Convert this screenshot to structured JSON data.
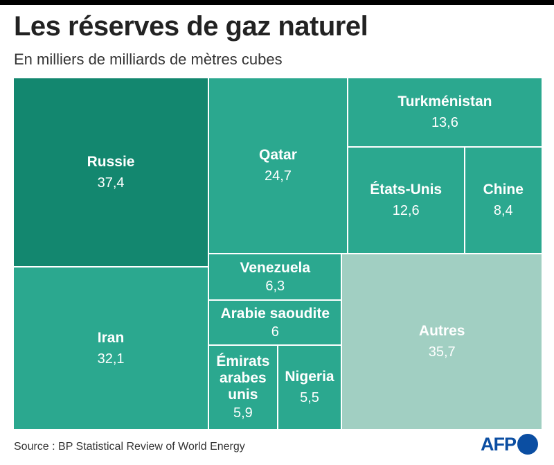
{
  "title": "Les réserves de gaz naturel",
  "subtitle": "En milliers de milliards de mètres cubes",
  "source": "Source : BP Statistical Review of World Energy",
  "logo_text": "AFP",
  "colors": {
    "dark": "#13876f",
    "mid": "#2ba88f",
    "light": "#a1cfc2"
  },
  "chart_data": {
    "type": "treemap",
    "title": "Les réserves de gaz naturel",
    "unit": "En milliers de milliards de mètres cubes",
    "items": [
      {
        "id": "russie",
        "name": "Russie",
        "value": 37.4,
        "label": "37,4"
      },
      {
        "id": "iran",
        "name": "Iran",
        "value": 32.1,
        "label": "32,1"
      },
      {
        "id": "qatar",
        "name": "Qatar",
        "value": 24.7,
        "label": "24,7"
      },
      {
        "id": "turkmenistan",
        "name": "Turkménistan",
        "value": 13.6,
        "label": "13,6"
      },
      {
        "id": "etats-unis",
        "name": "États-Unis",
        "value": 12.6,
        "label": "12,6"
      },
      {
        "id": "chine",
        "name": "Chine",
        "value": 8.4,
        "label": "8,4"
      },
      {
        "id": "venezuela",
        "name": "Venezuela",
        "value": 6.3,
        "label": "6,3"
      },
      {
        "id": "arabie-saoudite",
        "name": "Arabie saoudite",
        "value": 6,
        "label": "6"
      },
      {
        "id": "emirats-arabes-unis",
        "name": "Émirats arabes unis",
        "value": 5.9,
        "label": "5,9"
      },
      {
        "id": "nigeria",
        "name": "Nigeria",
        "value": 5.5,
        "label": "5,5"
      },
      {
        "id": "autres",
        "name": "Autres",
        "value": 35.7,
        "label": "35,7"
      }
    ]
  }
}
